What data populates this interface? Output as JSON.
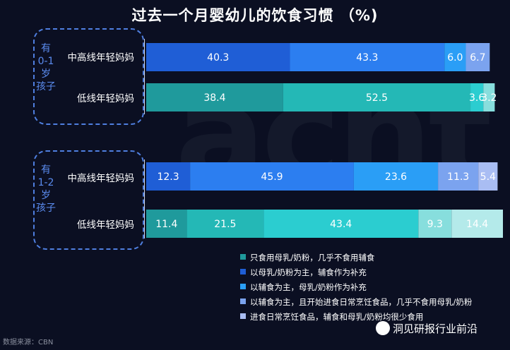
{
  "title": "过去一个月婴幼儿的饮食习惯 （%)",
  "watermark": "acnt",
  "groups": [
    {
      "label_lines": [
        "有",
        "0-1",
        "岁",
        "孩子"
      ]
    },
    {
      "label_lines": [
        "有",
        "1-2",
        "岁",
        "孩子"
      ]
    }
  ],
  "source_note": "数据来源：CBN",
  "brand_note": "洞见研报行业前沿",
  "colors": {
    "high_tier": [
      "#1f5ed6",
      "#2c7ef0",
      "#2a9ef6",
      "#7ba3ef",
      "#a9bdf3"
    ],
    "low_tier": [
      "#1f9a9c",
      "#24b8b6",
      "#2bcdd0",
      "#87dedd",
      "#b4eaea"
    ]
  },
  "chart_data": {
    "type": "bar",
    "orientation": "horizontal",
    "stacked": true,
    "title": "过去一个月婴幼儿的饮食习惯 （%)",
    "categories": [
      "中高线年轻妈妈",
      "低线年轻妈妈",
      "中高线年轻妈妈",
      "低线年轻妈妈"
    ],
    "category_groups": [
      "有0-1岁孩子",
      "有0-1岁孩子",
      "有1-2岁孩子",
      "有1-2岁孩子"
    ],
    "series": [
      {
        "name": "只食用母乳/奶粉，几乎不食用辅食",
        "values": [
          40.3,
          38.4,
          12.3,
          11.4
        ]
      },
      {
        "name": "以母乳/奶粉为主，辅食作为补充",
        "values": [
          43.3,
          52.5,
          45.9,
          21.5
        ]
      },
      {
        "name": "以辅食为主，母乳/奶粉作为补充",
        "values": [
          6.0,
          3.6,
          23.6,
          43.4
        ]
      },
      {
        "name": "以辅食为主，且开始进食日常烹饪食品，几乎不食用母乳/奶粉",
        "values": [
          6.7,
          3.2,
          11.3,
          9.3
        ]
      },
      {
        "name": "进食日常烹饪食品，辅食和母乳/奶粉均很少食用",
        "values": [
          null,
          null,
          5.4,
          14.4
        ]
      }
    ],
    "xlim": [
      0,
      100
    ],
    "legend_position": "bottom-right",
    "grid": false
  }
}
